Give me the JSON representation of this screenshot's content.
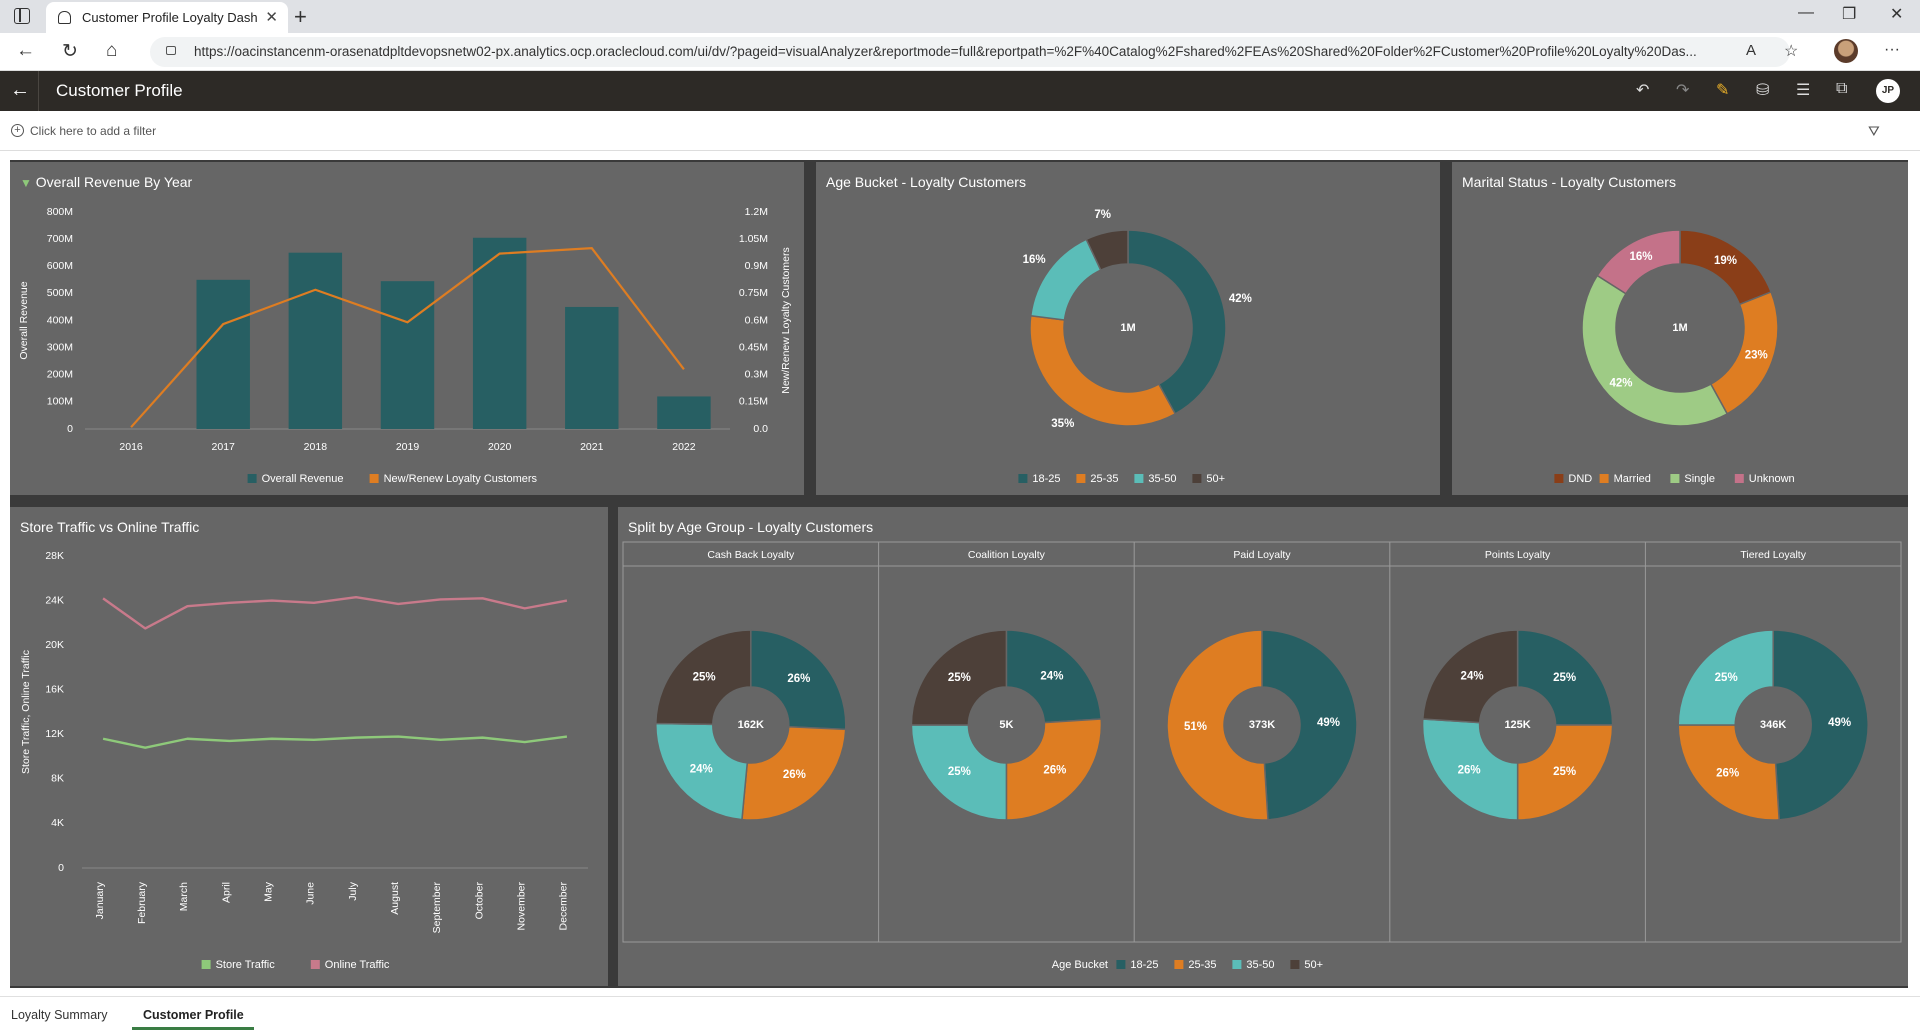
{
  "browser": {
    "tab_title": "Customer Profile Loyalty Dashbo",
    "url": "https://oacinstancenm-orasenatdpltdevopsnetw02-px.analytics.ocp.oraclecloud.com/ui/dv/?pageid=visualAnalyzer&reportmode=full&reportpath=%2F%40Catalog%2Fshared%2FEAs%20Shared%20Folder%2FCustomer%20Profile%20Loyalty%20Das..."
  },
  "app": {
    "title": "Customer Profile",
    "user_initials": "JP",
    "filter_placeholder": "Click here to add a filter"
  },
  "colors": {
    "teal_dark": "#275f63",
    "orange": "#de7d22",
    "teal_light": "#5bbdb8",
    "brown_dark": "#4d4039",
    "rust": "#8a3e18",
    "green_light": "#9ecb85",
    "pink": "#c47289",
    "store_green": "#8ec97a",
    "online_pink": "#c87a8b",
    "panel_bg": "#666666"
  },
  "panels": {
    "revenue": {
      "title": "Overall Revenue By Year"
    },
    "age_bucket": {
      "title": "Age Bucket - Loyalty Customers"
    },
    "marital": {
      "title": "Marital Status - Loyalty Customers"
    },
    "traffic": {
      "title": "Store Traffic vs Online Traffic"
    },
    "split": {
      "title": "Split by Age Group - Loyalty Customers"
    }
  },
  "chart_data": [
    {
      "id": "revenue",
      "type": "bar",
      "title": "Overall Revenue By Year",
      "categories": [
        "2016",
        "2017",
        "2018",
        "2019",
        "2020",
        "2021",
        "2022"
      ],
      "series": [
        {
          "name": "Overall Revenue",
          "axis": "left",
          "type": "bar",
          "values": [
            0,
            550,
            650,
            545,
            705,
            450,
            120
          ]
        },
        {
          "name": "New/Renew Loyalty Customers",
          "axis": "right",
          "type": "line",
          "values": [
            0.01,
            0.58,
            0.77,
            0.59,
            0.97,
            1.0,
            0.33
          ]
        }
      ],
      "ylabel": "Overall Revenue",
      "y2label": "New/Renew Loyalty Customers",
      "ylim": [
        0,
        800
      ],
      "y2lim": [
        0,
        1.2
      ],
      "yticks": [
        "0",
        "100M",
        "200M",
        "300M",
        "400M",
        "500M",
        "600M",
        "700M",
        "800M"
      ],
      "y2ticks": [
        "0.0",
        "0.15M",
        "0.3M",
        "0.45M",
        "0.6M",
        "0.75M",
        "0.9M",
        "1.05M",
        "1.2M"
      ],
      "legend": [
        "Overall Revenue",
        "New/Renew Loyalty Customers"
      ]
    },
    {
      "id": "age_bucket",
      "type": "pie",
      "title": "Age Bucket - Loyalty Customers",
      "center_label": "1M",
      "slices": [
        {
          "name": "18-25",
          "value": 42,
          "label": "42%"
        },
        {
          "name": "25-35",
          "value": 35,
          "label": "35%"
        },
        {
          "name": "35-50",
          "value": 16,
          "label": "16%"
        },
        {
          "name": "50+",
          "value": 7,
          "label": "7%"
        }
      ],
      "legend": [
        "18-25",
        "25-35",
        "35-50",
        "50+"
      ]
    },
    {
      "id": "marital",
      "type": "pie",
      "title": "Marital Status - Loyalty Customers",
      "center_label": "1M",
      "slices": [
        {
          "name": "DND",
          "value": 19,
          "label": "19%"
        },
        {
          "name": "Married",
          "value": 23,
          "label": "23%"
        },
        {
          "name": "Single",
          "value": 42,
          "label": "42%"
        },
        {
          "name": "Unknown",
          "value": 16,
          "label": "16%"
        }
      ],
      "legend": [
        "DND",
        "Married",
        "Single",
        "Unknown"
      ]
    },
    {
      "id": "traffic",
      "type": "line",
      "title": "Store Traffic vs Online Traffic",
      "categories": [
        "January",
        "February",
        "March",
        "April",
        "May",
        "June",
        "July",
        "August",
        "September",
        "October",
        "November",
        "December"
      ],
      "series": [
        {
          "name": "Store Traffic",
          "values": [
            11600,
            10800,
            11600,
            11400,
            11600,
            11500,
            11700,
            11800,
            11500,
            11700,
            11300,
            11800
          ]
        },
        {
          "name": "Online Traffic",
          "values": [
            24200,
            21500,
            23500,
            23800,
            24000,
            23800,
            24300,
            23700,
            24100,
            24200,
            23300,
            24000
          ]
        }
      ],
      "ylabel": "Store Traffic, Online Traffic",
      "ylim": [
        0,
        28000
      ],
      "yticks": [
        "0",
        "4K",
        "8K",
        "12K",
        "16K",
        "20K",
        "24K",
        "28K"
      ],
      "legend": [
        "Store Traffic",
        "Online Traffic"
      ]
    },
    {
      "id": "split",
      "type": "pie",
      "title": "Split by Age Group - Loyalty Customers",
      "legend_title": "Age Bucket",
      "legend": [
        "18-25",
        "25-35",
        "35-50",
        "50+"
      ],
      "groups": [
        {
          "name": "Cash Back Loyalty",
          "center": "162K",
          "slices": [
            {
              "name": "18-25",
              "value": 26,
              "label": "26%"
            },
            {
              "name": "25-35",
              "value": 26,
              "label": "26%"
            },
            {
              "name": "35-50",
              "value": 24,
              "label": "24%"
            },
            {
              "name": "50+",
              "value": 25,
              "label": "25%"
            }
          ]
        },
        {
          "name": "Coalition Loyalty",
          "center": "5K",
          "slices": [
            {
              "name": "18-25",
              "value": 24,
              "label": "24%"
            },
            {
              "name": "25-35",
              "value": 26,
              "label": "26%"
            },
            {
              "name": "35-50",
              "value": 25,
              "label": "25%"
            },
            {
              "name": "50+",
              "value": 25,
              "label": "25%"
            }
          ]
        },
        {
          "name": "Paid Loyalty",
          "center": "373K",
          "slices": [
            {
              "name": "18-25",
              "value": 49,
              "label": "49%"
            },
            {
              "name": "25-35",
              "value": 51,
              "label": "51%"
            }
          ]
        },
        {
          "name": "Points Loyalty",
          "center": "125K",
          "slices": [
            {
              "name": "18-25",
              "value": 25,
              "label": "25%"
            },
            {
              "name": "25-35",
              "value": 25,
              "label": "25%"
            },
            {
              "name": "35-50",
              "value": 26,
              "label": "26%"
            },
            {
              "name": "50+",
              "value": 24,
              "label": "24%"
            }
          ]
        },
        {
          "name": "Tiered Loyalty",
          "center": "346K",
          "slices": [
            {
              "name": "18-25",
              "value": 49,
              "label": "49%"
            },
            {
              "name": "25-35",
              "value": 26,
              "label": "26%"
            },
            {
              "name": "35-50",
              "value": 25,
              "label": "25%"
            }
          ]
        }
      ]
    }
  ],
  "bottom_tabs": [
    "Loyalty Summary",
    "Customer Profile"
  ]
}
